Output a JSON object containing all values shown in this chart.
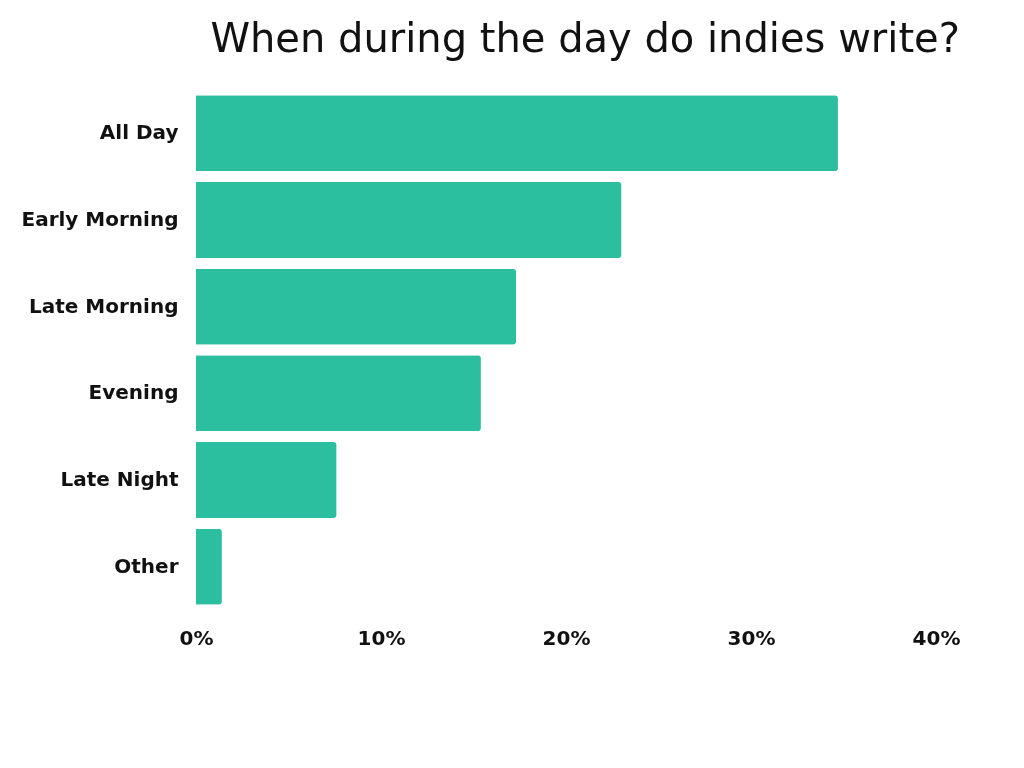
{
  "chart_data": {
    "type": "bar",
    "orientation": "horizontal",
    "title": "When during the day do indies write?",
    "categories": [
      "All Day",
      "Early Morning",
      "Late Morning",
      "Evening",
      "Late Night",
      "Other"
    ],
    "values": [
      34.7,
      23.0,
      17.3,
      15.4,
      7.6,
      1.4
    ],
    "color": "#2bbf9f",
    "xlim": [
      0,
      40
    ],
    "xticks": [
      {
        "value": 0,
        "label": "0%"
      },
      {
        "value": 10,
        "label": "10%"
      },
      {
        "value": 20,
        "label": "20%"
      },
      {
        "value": 30,
        "label": "30%"
      },
      {
        "value": 40,
        "label": "40%"
      }
    ],
    "grid": false
  }
}
